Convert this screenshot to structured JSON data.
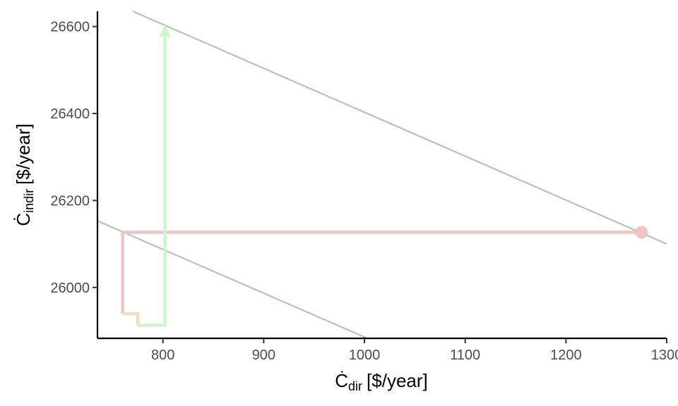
{
  "chart_data": {
    "type": "line",
    "title": "",
    "xlabel": {
      "main": "Ċ",
      "sub": "dir",
      "unit": "[$/year]"
    },
    "ylabel": {
      "main": "Ċ",
      "sub": "indir",
      "unit": "[$/year]"
    },
    "xlim": [
      735,
      1300
    ],
    "ylim": [
      25883,
      26635
    ],
    "x_ticks": [
      800,
      900,
      1000,
      1100,
      1200,
      1300
    ],
    "x_tick_labels": [
      "800",
      "900",
      "1000",
      "1100",
      "1200",
      "1300"
    ],
    "y_ticks": [
      26000,
      26200,
      26400,
      26600
    ],
    "y_tick_labels": [
      "26000",
      "26200",
      "26400",
      "26600"
    ],
    "grid": false,
    "reference_lines": [
      {
        "color": "#bebebe",
        "points": [
          [
            770,
            26635
          ],
          [
            1300,
            26100
          ]
        ]
      },
      {
        "color": "#bebebe",
        "points": [
          [
            735,
            26153
          ],
          [
            1003,
            25883
          ]
        ]
      }
    ],
    "series": [
      {
        "color": "#f4c2c2",
        "marker_end": "point",
        "points": [
          [
            1275,
            26127
          ],
          [
            760,
            26127
          ],
          [
            760,
            25940
          ]
        ]
      },
      {
        "color": "#f9dcc0",
        "points": [
          [
            760,
            25940
          ],
          [
            775,
            25940
          ],
          [
            775,
            25913
          ]
        ]
      },
      {
        "color": "#ccf7c9",
        "marker_end": "arrow",
        "points": [
          [
            775,
            25913
          ],
          [
            802,
            25913
          ],
          [
            802,
            26605
          ]
        ]
      }
    ]
  }
}
